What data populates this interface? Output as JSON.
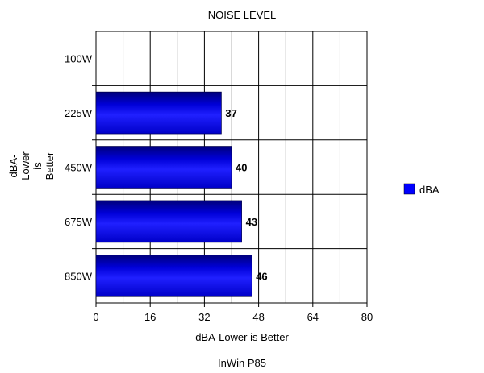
{
  "chart_data": {
    "type": "bar",
    "orientation": "horizontal",
    "title": "NOISE LEVEL",
    "subtitle": "InWin P85",
    "xlabel": "dBA-Lower is Better",
    "ylabel_lines": [
      "dBA-",
      "Lower",
      "is",
      "Better"
    ],
    "categories": [
      "100W",
      "225W",
      "450W",
      "675W",
      "850W"
    ],
    "series": [
      {
        "name": "dBA",
        "values": [
          null,
          37,
          40,
          43,
          46
        ],
        "color": "#0000ff"
      }
    ],
    "data_labels": [
      "",
      "37",
      "40",
      "43",
      "46"
    ],
    "xlim": [
      0,
      80
    ],
    "xticks": [
      0,
      16,
      32,
      48,
      64,
      80
    ],
    "grid": {
      "major": 16,
      "minor": 8
    },
    "legend_position": "right"
  }
}
